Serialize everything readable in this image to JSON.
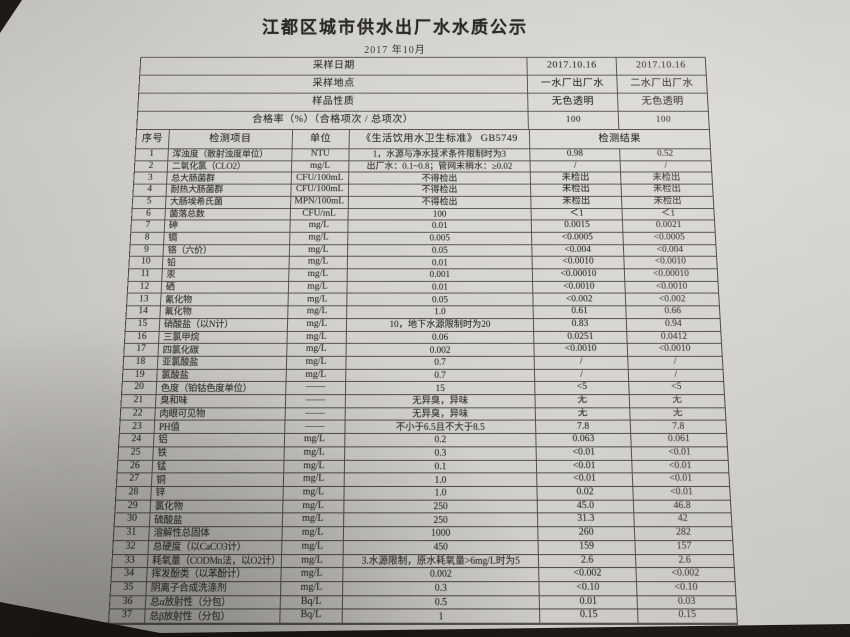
{
  "doc": {
    "title": "江都区城市供水出厂水水质公示",
    "subtitle": "2017 年10月",
    "meta_rows": [
      {
        "label": "采样日期",
        "v1": "2017.10.16",
        "v2": "2017.10.16"
      },
      {
        "label": "采样地点",
        "v1": "一水厂出厂水",
        "v2": "二水厂出厂水"
      },
      {
        "label": "样品性质",
        "v1": "无色透明",
        "v2": "无色透明"
      },
      {
        "label": "合格率（%）（合格项次 / 总项次）",
        "v1": "100",
        "v2": "100"
      }
    ],
    "columns": {
      "no": "序号",
      "item": "检测项目",
      "unit": "单位",
      "standard": "《生活饮用水卫生标准》 GB5749",
      "result": "检测结果"
    },
    "table": {
      "rows": [
        {
          "no": "1",
          "item": "浑浊度（散射浊度单位）",
          "unit": "NTU",
          "standard": "1，水源与净水技术条件限制时为3",
          "r1": "0.98",
          "r2": "0.52"
        },
        {
          "no": "2",
          "item": "二氧化氯（CLO2）",
          "unit": "mg/L",
          "standard": "出厂水：0.1~0.8；管网末梢水：≥0.02",
          "r1": "/",
          "r2": "/"
        },
        {
          "no": "3",
          "item": "总大肠菌群",
          "unit": "CFU/100mL",
          "standard": "不得检出",
          "r1": "未检出",
          "r2": "未检出"
        },
        {
          "no": "4",
          "item": "耐热大肠菌群",
          "unit": "CFU/100mL",
          "standard": "不得检出",
          "r1": "未检出",
          "r2": "未检出"
        },
        {
          "no": "5",
          "item": "大肠埃希氏菌",
          "unit": "MPN/100mL",
          "standard": "不得检出",
          "r1": "未检出",
          "r2": "未检出"
        },
        {
          "no": "6",
          "item": "菌落总数",
          "unit": "CFU/mL",
          "standard": "100",
          "r1": "＜1",
          "r2": "＜1"
        },
        {
          "no": "7",
          "item": "砷",
          "unit": "mg/L",
          "standard": "0.01",
          "r1": "0.0015",
          "r2": "0.0021"
        },
        {
          "no": "8",
          "item": "镉",
          "unit": "mg/L",
          "standard": "0.005",
          "r1": "<0.0005",
          "r2": "<0.0005"
        },
        {
          "no": "9",
          "item": "铬（六价）",
          "unit": "mg/L",
          "standard": "0.05",
          "r1": "<0.004",
          "r2": "<0.004"
        },
        {
          "no": "10",
          "item": "铅",
          "unit": "mg/L",
          "standard": "0.01",
          "r1": "<0.0010",
          "r2": "<0.0010"
        },
        {
          "no": "11",
          "item": "汞",
          "unit": "mg/L",
          "standard": "0.001",
          "r1": "<0.00010",
          "r2": "<0.00010"
        },
        {
          "no": "12",
          "item": "硒",
          "unit": "mg/L",
          "standard": "0.01",
          "r1": "<0.0010",
          "r2": "<0.0010"
        },
        {
          "no": "13",
          "item": "氰化物",
          "unit": "mg/L",
          "standard": "0.05",
          "r1": "<0.002",
          "r2": "<0.002"
        },
        {
          "no": "14",
          "item": "氟化物",
          "unit": "mg/L",
          "standard": "1.0",
          "r1": "0.61",
          "r2": "0.66"
        },
        {
          "no": "15",
          "item": "硝酸盐（以N计）",
          "unit": "mg/L",
          "standard": "10，地下水源限制时为20",
          "r1": "0.83",
          "r2": "0.94"
        },
        {
          "no": "16",
          "item": "三氯甲烷",
          "unit": "mg/L",
          "standard": "0.06",
          "r1": "0.0251",
          "r2": "0.0412"
        },
        {
          "no": "17",
          "item": "四氯化碳",
          "unit": "mg/L",
          "standard": "0.002",
          "r1": "<0.0010",
          "r2": "<0.0010"
        },
        {
          "no": "18",
          "item": "亚氯酸盐",
          "unit": "mg/L",
          "standard": "0.7",
          "r1": "/",
          "r2": "/"
        },
        {
          "no": "19",
          "item": "氯酸盐",
          "unit": "mg/L",
          "standard": "0.7",
          "r1": "/",
          "r2": "/"
        },
        {
          "no": "20",
          "item": "色度（铂钴色度单位）",
          "unit": "——",
          "standard": "15",
          "r1": "<5",
          "r2": "<5"
        },
        {
          "no": "21",
          "item": "臭和味",
          "unit": "——",
          "standard": "无异臭，异味",
          "r1": "无",
          "r2": "无"
        },
        {
          "no": "22",
          "item": "肉眼可见物",
          "unit": "——",
          "standard": "无异臭，异味",
          "r1": "无",
          "r2": "无"
        },
        {
          "no": "23",
          "item": "PH值",
          "unit": "——",
          "standard": "不小于6.5且不大于8.5",
          "r1": "7.8",
          "r2": "7.8"
        },
        {
          "no": "24",
          "item": "铝",
          "unit": "mg/L",
          "standard": "0.2",
          "r1": "0.063",
          "r2": "0.061"
        },
        {
          "no": "25",
          "item": "铁",
          "unit": "mg/L",
          "standard": "0.3",
          "r1": "<0.01",
          "r2": "<0.01"
        },
        {
          "no": "26",
          "item": "锰",
          "unit": "mg/L",
          "standard": "0.1",
          "r1": "<0.01",
          "r2": "<0.01"
        },
        {
          "no": "27",
          "item": "铜",
          "unit": "mg/L",
          "standard": "1.0",
          "r1": "<0.01",
          "r2": "<0.01"
        },
        {
          "no": "28",
          "item": "锌",
          "unit": "mg/L",
          "standard": "1.0",
          "r1": "0.02",
          "r2": "<0.01"
        },
        {
          "no": "29",
          "item": "氯化物",
          "unit": "mg/L",
          "standard": "250",
          "r1": "45.0",
          "r2": "46.8"
        },
        {
          "no": "30",
          "item": "硫酸盐",
          "unit": "mg/L",
          "standard": "250",
          "r1": "31.3",
          "r2": "42"
        },
        {
          "no": "31",
          "item": "溶解性总固体",
          "unit": "mg/L",
          "standard": "1000",
          "r1": "260",
          "r2": "282"
        },
        {
          "no": "32",
          "item": "总硬度（以CaCO3计）",
          "unit": "mg/L",
          "standard": "450",
          "r1": "159",
          "r2": "157"
        },
        {
          "no": "33",
          "item": "耗氧量（CODMn法，以O2计）",
          "unit": "mg/L",
          "standard": "3.水源限制，原水耗氧量>6mg/L时为5",
          "r1": "2.6",
          "r2": "2.6"
        },
        {
          "no": "34",
          "item": "挥发酚类（以苯酚计）",
          "unit": "mg/L",
          "standard": "0.002",
          "r1": "<0.002",
          "r2": "<0.002"
        },
        {
          "no": "35",
          "item": "阴离子合成洗涤剂",
          "unit": "mg/L",
          "standard": "0.3",
          "r1": "<0.10",
          "r2": "<0.10"
        },
        {
          "no": "36",
          "item": "总α放射性（分包）",
          "unit": "Bq/L",
          "standard": "0.5",
          "r1": "0.01",
          "r2": "0.03"
        },
        {
          "no": "37",
          "item": "总β放射性（分包）",
          "unit": "Bq/L",
          "standard": "1",
          "r1": "0.15",
          "r2": "0.15"
        }
      ]
    },
    "colors": {
      "paper": "#d6d4d0",
      "photo_background": "#1e1a15",
      "table_border": "#55524d",
      "ink": "#302f2c"
    }
  }
}
